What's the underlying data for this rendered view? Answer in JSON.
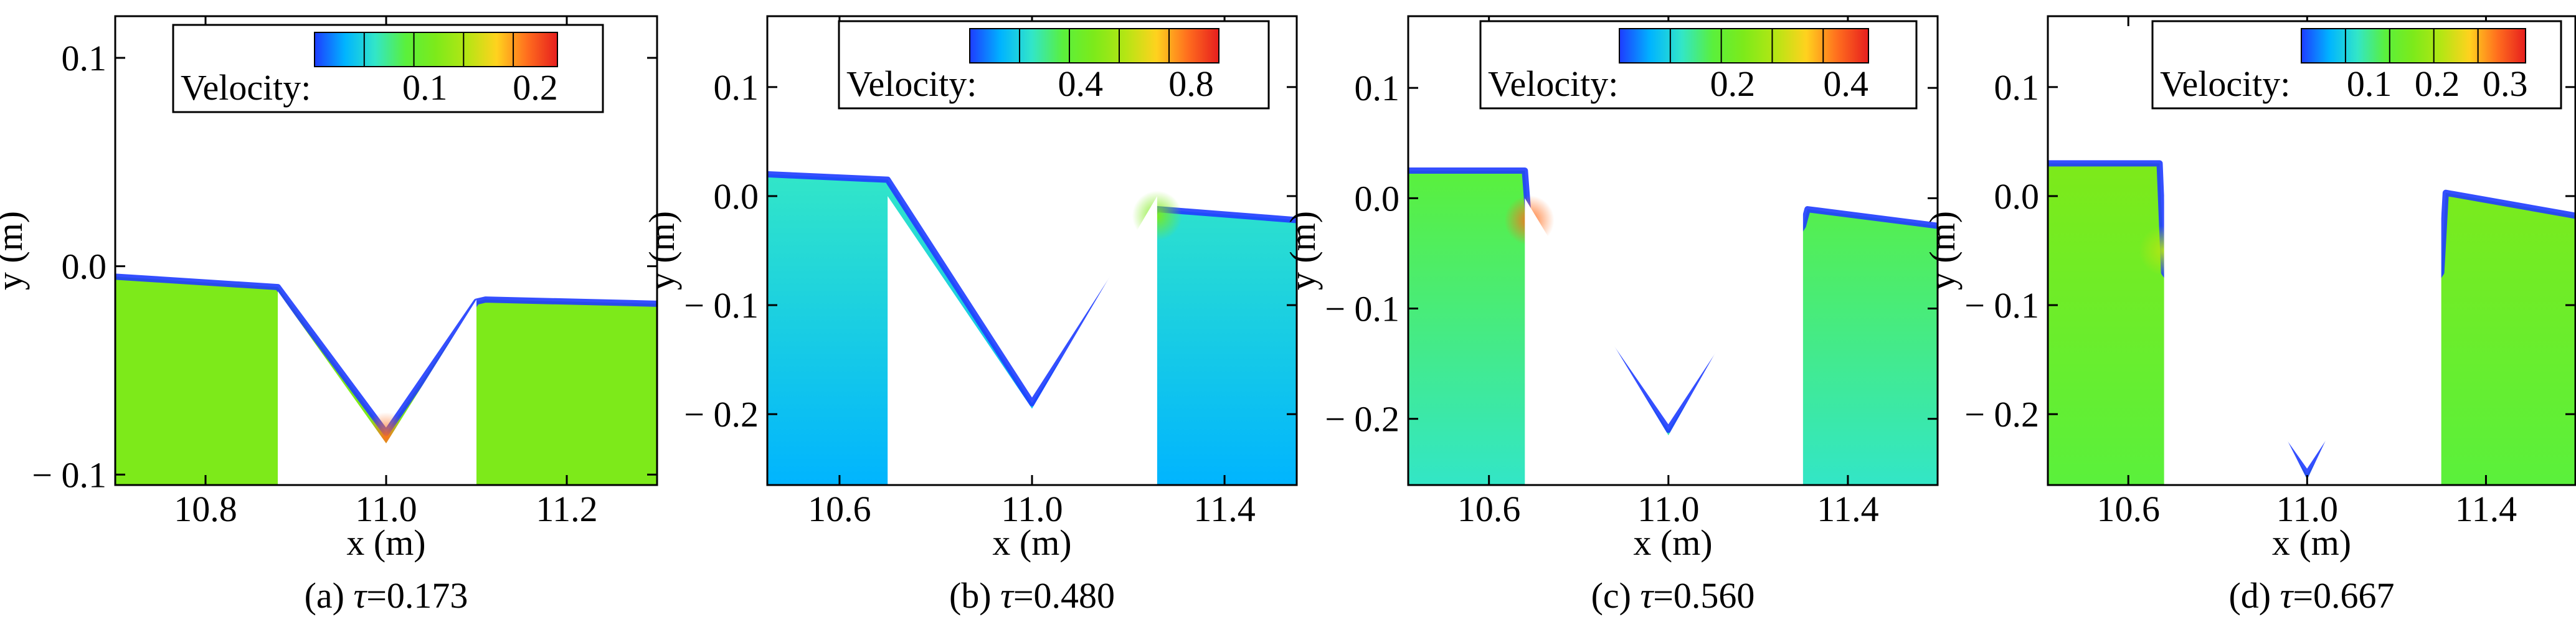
{
  "colormap": [
    "#1e3cff",
    "#00b4ff",
    "#32e6c8",
    "#5af03c",
    "#7dea1a",
    "#b4e614",
    "#ffd21e",
    "#ff6e1e",
    "#e61e1e"
  ],
  "colors": {
    "water_top": "#1e3cff",
    "boundary": "#ff3c1e"
  },
  "chart_data": [
    {
      "type": "heatmap",
      "caption_prefix": "(a) ",
      "caption_symbol": "τ",
      "caption_value": "=0.173",
      "xlabel": "x (m)",
      "ylabel": "y (m)",
      "xlim": [
        10.7,
        11.3
      ],
      "ylim": [
        -0.105,
        0.12
      ],
      "xticks": [
        10.8,
        11.0,
        11.2
      ],
      "xticklabels": [
        "10.8",
        "11.0",
        "11.2"
      ],
      "yticks": [
        0.1,
        0.0,
        -0.1
      ],
      "yticklabels": [
        "0.1",
        "0.0",
        "− 0.1"
      ],
      "legend_label": "Velocity:",
      "legend_max": 0.22,
      "legend_ticks": [
        0.1,
        0.2
      ],
      "legend_ticklabels": [
        "0.1",
        "0.2"
      ],
      "legend_dividers": [
        0.045,
        0.09,
        0.135,
        0.18
      ],
      "bed": [
        [
          10.7,
          -0.012
        ],
        [
          10.88,
          -0.012
        ],
        [
          11.0,
          -0.085
        ],
        [
          11.1,
          -0.016
        ],
        [
          11.3,
          -0.016
        ]
      ],
      "surface": [
        [
          10.7,
          -0.005
        ],
        [
          10.88,
          -0.01
        ],
        [
          11.0,
          -0.08
        ],
        [
          11.1,
          -0.017
        ],
        [
          11.11,
          -0.016
        ],
        [
          11.3,
          -0.018
        ]
      ],
      "bulk_value": 0.11,
      "hot_value": 0.19,
      "hot_point": [
        11.0,
        -0.082
      ]
    },
    {
      "type": "heatmap",
      "caption_prefix": "(b) ",
      "caption_symbol": "τ",
      "caption_value": "=0.480",
      "xlabel": "x (m)",
      "ylabel": "y (m)",
      "xlim": [
        10.45,
        11.55
      ],
      "ylim": [
        -0.265,
        0.165
      ],
      "xticks": [
        10.6,
        11.0,
        11.4
      ],
      "xticklabels": [
        "10.6",
        "11.0",
        "11.4"
      ],
      "yticks": [
        0.1,
        0.0,
        -0.1,
        -0.2
      ],
      "yticklabels": [
        "0.1",
        "0.0",
        "− 0.1",
        "− 0.2"
      ],
      "legend_label": "Velocity:",
      "legend_max": 0.9,
      "legend_ticks": [
        0.4,
        0.8
      ],
      "legend_ticklabels": [
        "0.4",
        "0.8"
      ],
      "legend_dividers": [
        0.18,
        0.36,
        0.54,
        0.72
      ],
      "bed": [
        [
          10.45,
          0.0
        ],
        [
          10.7,
          0.0
        ],
        [
          11.0,
          -0.195
        ],
        [
          11.26,
          0.0
        ],
        [
          11.55,
          0.0
        ]
      ],
      "surface": [
        [
          10.45,
          0.02
        ],
        [
          10.7,
          0.015
        ],
        [
          11.0,
          -0.19
        ],
        [
          11.26,
          -0.012
        ],
        [
          11.55,
          -0.022
        ]
      ],
      "bulk_value": 0.14,
      "hot_value": 0.5,
      "hot_point": [
        11.26,
        -0.018
      ]
    },
    {
      "type": "heatmap",
      "caption_prefix": "(c) ",
      "caption_symbol": "τ",
      "caption_value": "=0.560",
      "xlabel": "x (m)",
      "ylabel": "y (m)",
      "xlim": [
        10.42,
        11.6
      ],
      "ylim": [
        -0.26,
        0.165
      ],
      "xticks": [
        10.6,
        11.0,
        11.4
      ],
      "xticklabels": [
        "10.6",
        "11.0",
        "11.4"
      ],
      "yticks": [
        0.1,
        0.0,
        -0.1,
        -0.2
      ],
      "yticklabels": [
        "0.1",
        "0.0",
        "− 0.1",
        "− 0.2"
      ],
      "legend_label": "Velocity:",
      "legend_max": 0.44,
      "legend_ticks": [
        0.2,
        0.4
      ],
      "legend_ticklabels": [
        "0.2",
        "0.4"
      ],
      "legend_dividers": [
        0.09,
        0.18,
        0.27,
        0.36
      ],
      "bed": [
        [
          10.42,
          0.0
        ],
        [
          10.68,
          0.0
        ],
        [
          11.0,
          -0.215
        ],
        [
          11.3,
          0.0
        ],
        [
          11.6,
          0.0
        ]
      ],
      "surface": [
        [
          10.42,
          0.025
        ],
        [
          10.68,
          0.025
        ],
        [
          10.69,
          -0.028
        ],
        [
          11.0,
          -0.21
        ],
        [
          11.3,
          -0.025
        ],
        [
          11.31,
          -0.01
        ],
        [
          11.6,
          -0.025
        ]
      ],
      "bulk_value": 0.16,
      "hot_value": 0.38,
      "hot_point": [
        10.69,
        -0.02
      ]
    },
    {
      "type": "heatmap",
      "caption_prefix": "(d) ",
      "caption_symbol": "τ",
      "caption_value": "=0.667",
      "xlabel": "x (m)",
      "ylabel": "y (m)",
      "xlim": [
        10.42,
        11.6
      ],
      "ylim": [
        -0.265,
        0.165
      ],
      "xticks": [
        10.6,
        11.0,
        11.4
      ],
      "xticklabels": [
        "10.6",
        "11.0",
        "11.4"
      ],
      "yticks": [
        0.1,
        0.0,
        -0.1,
        -0.2
      ],
      "yticklabels": [
        "0.1",
        "0.0",
        "− 0.1",
        "− 0.2"
      ],
      "legend_label": "Velocity:",
      "legend_max": 0.33,
      "legend_ticks": [
        0.1,
        0.2,
        0.3
      ],
      "legend_ticklabels": [
        "0.1",
        "0.2",
        "0.3"
      ],
      "legend_dividers": [
        0.065,
        0.13,
        0.195,
        0.26
      ],
      "bed": [
        [
          10.42,
          0.0
        ],
        [
          10.68,
          0.0
        ],
        [
          11.0,
          -0.26
        ],
        [
          11.3,
          0.0
        ],
        [
          11.6,
          0.0
        ]
      ],
      "surface": [
        [
          10.42,
          0.03
        ],
        [
          10.67,
          0.03
        ],
        [
          10.68,
          -0.07
        ],
        [
          11.0,
          -0.255
        ],
        [
          11.3,
          -0.07
        ],
        [
          11.31,
          0.003
        ],
        [
          11.6,
          -0.018
        ]
      ],
      "bulk_value": 0.15,
      "hot_value": 0.2,
      "hot_point": [
        10.68,
        -0.05
      ]
    }
  ]
}
